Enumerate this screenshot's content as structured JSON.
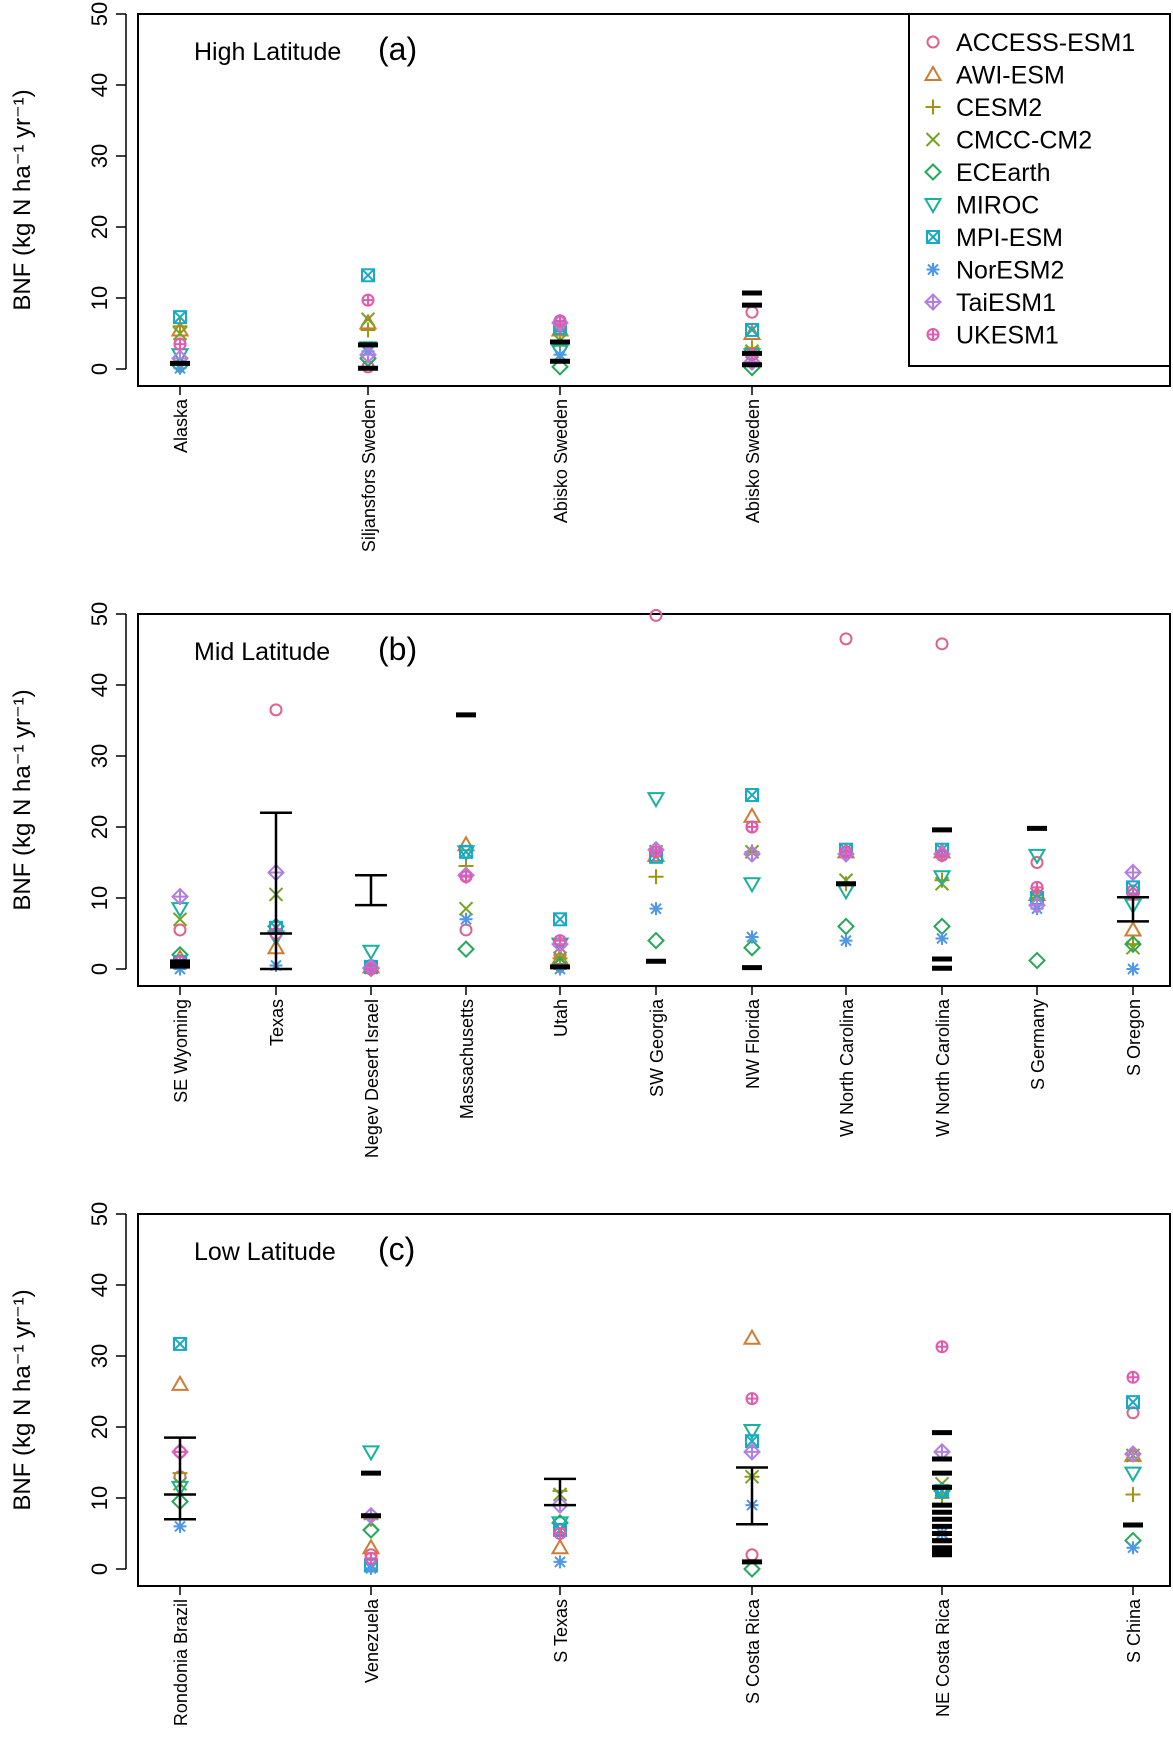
{
  "colors": {
    "ACCESS-ESM1": "#e0628a",
    "AWI-ESM": "#cf7c32",
    "CESM2": "#a59212",
    "CMCC-CM2": "#74a421",
    "ECEarth": "#23a95a",
    "MIROC": "#18b19c",
    "MPI-ESM": "#18a9c7",
    "NorESM2": "#4f98e8",
    "TaiESM1": "#b37ee4",
    "UKESM1": "#e459b0",
    "observed": "#000000"
  },
  "legend": {
    "entries": [
      {
        "label": "ACCESS-ESM1",
        "marker": "circle"
      },
      {
        "label": "AWI-ESM",
        "marker": "triangle-up"
      },
      {
        "label": "CESM2",
        "marker": "plus"
      },
      {
        "label": "CMCC-CM2",
        "marker": "cross"
      },
      {
        "label": "ECEarth",
        "marker": "diamond"
      },
      {
        "label": "MIROC",
        "marker": "triangle-down"
      },
      {
        "label": "MPI-ESM",
        "marker": "square-cross"
      },
      {
        "label": "NorESM2",
        "marker": "asterisk"
      },
      {
        "label": "TaiESM1",
        "marker": "diamond-plus"
      },
      {
        "label": "UKESM1",
        "marker": "circle-plus"
      }
    ]
  },
  "chart_data": [
    {
      "type": "scatter",
      "title": "High Latitude",
      "tag": "(a)",
      "ylabel": "BNF (kg N ha⁻¹ yr⁻¹)",
      "ylim": [
        0,
        50
      ],
      "yticks": [
        0,
        10,
        20,
        30,
        40,
        50
      ],
      "categories": [
        "Alaska",
        "Siljansfors Sweden",
        "Abisko Sweden",
        "Abisko Sweden"
      ],
      "series": [
        {
          "name": "ACCESS-ESM1",
          "values": [
            3.5,
            0.3,
            6.0,
            8.0
          ]
        },
        {
          "name": "AWI-ESM",
          "values": [
            5.5,
            6.5,
            5.5,
            5.0
          ]
        },
        {
          "name": "CESM2",
          "values": [
            6.0,
            5.5,
            3.5,
            3.0
          ]
        },
        {
          "name": "CMCC-CM2",
          "values": [
            5.0,
            7.0,
            4.0,
            2.5
          ]
        },
        {
          "name": "ECEarth",
          "values": [
            0.5,
            1.5,
            0.3,
            0.2
          ]
        },
        {
          "name": "MIROC",
          "values": [
            2.0,
            3.0,
            2.5,
            2.0
          ]
        },
        {
          "name": "MPI-ESM",
          "values": [
            7.3,
            13.2,
            5.8,
            5.5
          ]
        },
        {
          "name": "NorESM2",
          "values": [
            0.1,
            2.5,
            2.0,
            1.0
          ]
        },
        {
          "name": "TaiESM1",
          "values": [
            1.5,
            2.0,
            6.5,
            1.0
          ]
        },
        {
          "name": "UKESM1",
          "values": [
            3.5,
            9.7,
            6.8,
            2.0
          ]
        }
      ],
      "observed": [
        {
          "values": [
            0.8
          ]
        },
        {
          "values": [
            3.4,
            0.1
          ]
        },
        {
          "values": [
            3.8,
            1.1
          ]
        },
        {
          "values": [
            10.7,
            9.0,
            2.2,
            0.6
          ]
        }
      ]
    },
    {
      "type": "scatter",
      "title": "Mid Latitude",
      "tag": "(b)",
      "ylabel": "BNF (kg N ha⁻¹ yr⁻¹)",
      "ylim": [
        0,
        50
      ],
      "yticks": [
        0,
        10,
        20,
        30,
        40,
        50
      ],
      "categories": [
        "SE Wyoming",
        "Texas",
        "Negev Desert Israel",
        "Massachusetts",
        "Utah",
        "SW Georgia",
        "NW Florida",
        "W North Carolina",
        "W North Carolina",
        "S Germany",
        "S Oregon"
      ],
      "series": [
        {
          "name": "ACCESS-ESM1",
          "values": [
            5.5,
            36.5,
            0.5,
            5.5,
            2.0,
            49.8,
            20.0,
            46.5,
            45.8,
            15.0,
            11.0
          ]
        },
        {
          "name": "AWI-ESM",
          "values": [
            1.5,
            3.0,
            0.3,
            17.5,
            1.5,
            16.0,
            21.5,
            16.5,
            16.5,
            10.5,
            5.5
          ]
        },
        {
          "name": "CESM2",
          "values": [
            1.0,
            5.0,
            0.2,
            14.5,
            1.5,
            13.0,
            16.5,
            12.0,
            12.5,
            10.0,
            3.5
          ]
        },
        {
          "name": "CMCC-CM2",
          "values": [
            7.0,
            10.5,
            0.2,
            8.5,
            1.5,
            16.5,
            16.5,
            12.5,
            12.0,
            10.5,
            3.0
          ]
        },
        {
          "name": "ECEarth",
          "values": [
            2.0,
            6.0,
            0.1,
            2.8,
            0.5,
            4.0,
            3.0,
            6.0,
            6.0,
            1.2,
            3.5
          ]
        },
        {
          "name": "MIROC",
          "values": [
            8.5,
            4.5,
            2.5,
            16.5,
            3.5,
            24.0,
            12.0,
            11.0,
            13.0,
            16.0,
            9.0
          ]
        },
        {
          "name": "MPI-ESM",
          "values": [
            1.0,
            5.8,
            0.3,
            16.5,
            7.0,
            15.8,
            24.5,
            16.8,
            16.8,
            10.0,
            11.5
          ]
        },
        {
          "name": "NorESM2",
          "values": [
            0.0,
            0.5,
            0.1,
            7.0,
            0.0,
            8.5,
            4.5,
            4.0,
            4.3,
            8.5,
            0.0
          ]
        },
        {
          "name": "TaiESM1",
          "values": [
            10.2,
            13.6,
            0.2,
            13.2,
            3.5,
            16.8,
            16.2,
            16.2,
            16.2,
            9.0,
            13.6
          ]
        },
        {
          "name": "UKESM1",
          "values": [
            1.0,
            5.0,
            0.0,
            13.0,
            4.0,
            16.5,
            20.0,
            16.5,
            16.0,
            11.5,
            10.5
          ]
        }
      ],
      "observed": [
        {
          "values": [
            1.0,
            0.4
          ]
        },
        {
          "range": [
            0.0,
            22.0
          ],
          "center": 5.0
        },
        {
          "range": [
            9.0,
            13.2
          ]
        },
        {
          "values": [
            35.8
          ]
        },
        {
          "values": [
            0.3
          ]
        },
        {
          "values": [
            1.1
          ]
        },
        {
          "values": [
            0.2
          ]
        },
        {
          "values": [
            12.0
          ]
        },
        {
          "values": [
            19.6,
            1.4,
            0.1
          ]
        },
        {
          "values": [
            19.8
          ]
        },
        {
          "range": [
            6.7,
            10.1
          ]
        }
      ]
    },
    {
      "type": "scatter",
      "title": "Low Latitude",
      "tag": "(c)",
      "ylabel": "BNF (kg N ha⁻¹ yr⁻¹)",
      "ylim": [
        0,
        50
      ],
      "yticks": [
        0,
        10,
        20,
        30,
        40,
        50
      ],
      "categories": [
        "Rondonia Brazil",
        "Venezuela",
        "S Texas",
        "S Costa Rica",
        "NE Costa Rica",
        "S China"
      ],
      "series": [
        {
          "name": "ACCESS-ESM1",
          "values": [
            13.0,
            2.0,
            5.5,
            2.0,
            11.0,
            22.0
          ]
        },
        {
          "name": "AWI-ESM",
          "values": [
            26.0,
            3.0,
            3.0,
            32.5,
            4.5,
            16.0
          ]
        },
        {
          "name": "CESM2",
          "values": [
            13.5,
            7.0,
            11.0,
            13.0,
            10.0,
            10.5
          ]
        },
        {
          "name": "CMCC-CM2",
          "values": [
            12.0,
            6.5,
            10.5,
            13.0,
            12.0,
            16.0
          ]
        },
        {
          "name": "ECEarth",
          "values": [
            9.5,
            5.5,
            6.5,
            0.0,
            11.0,
            4.0
          ]
        },
        {
          "name": "MIROC",
          "values": [
            11.5,
            16.5,
            6.5,
            19.5,
            11.0,
            13.5
          ]
        },
        {
          "name": "MPI-ESM",
          "values": [
            31.7,
            0.5,
            5.5,
            18.0,
            11.0,
            23.5
          ]
        },
        {
          "name": "NorESM2",
          "values": [
            6.0,
            0.1,
            1.0,
            9.0,
            5.0,
            3.0
          ]
        },
        {
          "name": "TaiESM1",
          "values": [
            16.5,
            7.5,
            9.0,
            16.5,
            16.5,
            16.2
          ]
        },
        {
          "name": "UKESM1",
          "values": [
            16.5,
            1.5,
            5.0,
            24.0,
            31.3,
            27.0
          ]
        }
      ],
      "observed": [
        {
          "range": [
            7.0,
            18.5
          ],
          "center": 10.5
        },
        {
          "values": [
            13.5,
            7.5
          ]
        },
        {
          "range": [
            9.0,
            12.7
          ]
        },
        {
          "range": [
            6.3,
            14.3
          ],
          "extra": [
            1.0
          ]
        },
        {
          "values": [
            19.2,
            15.5,
            13.5,
            11.5,
            9.0,
            8.0,
            7.0,
            6.0,
            5.0,
            4.0,
            3.0,
            2.5,
            2.0
          ]
        },
        {
          "values": [
            6.2
          ]
        }
      ]
    }
  ]
}
